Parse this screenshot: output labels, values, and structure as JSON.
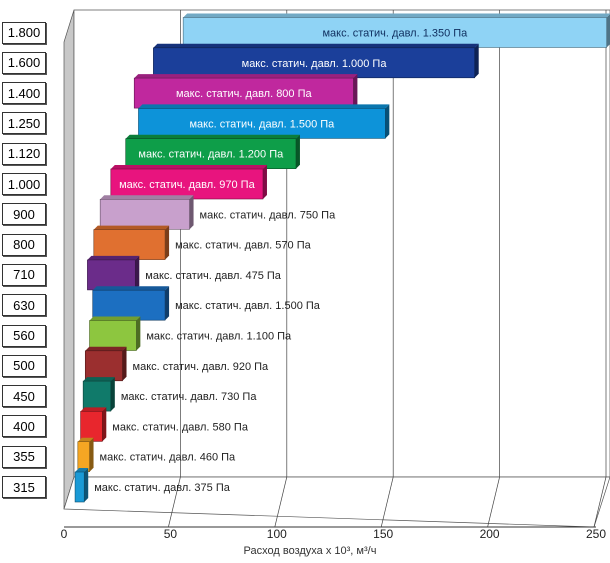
{
  "chart_data": {
    "type": "bar",
    "orientation": "horizontal",
    "xlabel": "Расход воздуха x 10³, м³/ч",
    "xlim": [
      0,
      250
    ],
    "xticks": [
      0,
      50,
      100,
      150,
      200,
      250
    ],
    "grid": true,
    "categories": [
      "315",
      "355",
      "400",
      "450",
      "500",
      "560",
      "630",
      "710",
      "800",
      "900",
      "1.000",
      "1.120",
      "1.250",
      "1.400",
      "1.600",
      "1.800"
    ],
    "bars": [
      {
        "start": 5.2,
        "end": 9.5,
        "color": "#1a9ad6",
        "label": "макс. статич. давл. 375 Па",
        "label_inside": false
      },
      {
        "start": 6.5,
        "end": 12,
        "color": "#f5a623",
        "label": "макс. статич. давл. 460 Па",
        "label_inside": false
      },
      {
        "start": 7.8,
        "end": 18,
        "color": "#e8262d",
        "label": "макс. статич. давл. 580 Па",
        "label_inside": false
      },
      {
        "start": 9,
        "end": 22,
        "color": "#107a6a",
        "label": "макс. статич. давл. 730 Па",
        "label_inside": false
      },
      {
        "start": 10,
        "end": 27.5,
        "color": "#9b2f2f",
        "label": "макс. статич. давл. 920 Па",
        "label_inside": false
      },
      {
        "start": 12,
        "end": 34,
        "color": "#8dc63f",
        "label": "макс. статич. давл. 1.100 Па",
        "label_inside": false
      },
      {
        "start": 13.5,
        "end": 47.5,
        "color": "#1c6fc1",
        "label": "макс. статич. давл. 1.500 Па",
        "label_inside": false
      },
      {
        "start": 11,
        "end": 33.5,
        "color": "#6b2c8a",
        "label": "макс. статич. давл. 475 Па",
        "label_inside": false
      },
      {
        "start": 14,
        "end": 47.5,
        "color": "#e07030",
        "label": "макс. статич. давл. 570 Па",
        "label_inside": false
      },
      {
        "start": 17,
        "end": 59,
        "color": "#c8a0cc",
        "label": "макс. статич. давл. 750 Па",
        "label_inside": false
      },
      {
        "start": 22,
        "end": 93.5,
        "color": "#e8147e",
        "label": "макс. статич. давл. 970 Па",
        "label_inside": true
      },
      {
        "start": 29,
        "end": 109,
        "color": "#0e9e49",
        "label": "макс. статич. давл. 1.200 Па",
        "label_inside": true
      },
      {
        "start": 35,
        "end": 151,
        "color": "#0d93d9",
        "label": "макс. статич. давл. 1.500 Па",
        "label_inside": true
      },
      {
        "start": 33,
        "end": 136,
        "color": "#c0289e",
        "label": "макс. статич. давл. 800 Па",
        "label_inside": true
      },
      {
        "start": 42,
        "end": 193,
        "color": "#1b3f9a",
        "label": "макс. статич. давл. 1.000 Па",
        "label_inside": true
      },
      {
        "start": 56,
        "end": 255,
        "color": "#8fd3f5",
        "label": "макс. статич. давл. 1.350 Па",
        "label_inside": true
      }
    ]
  }
}
